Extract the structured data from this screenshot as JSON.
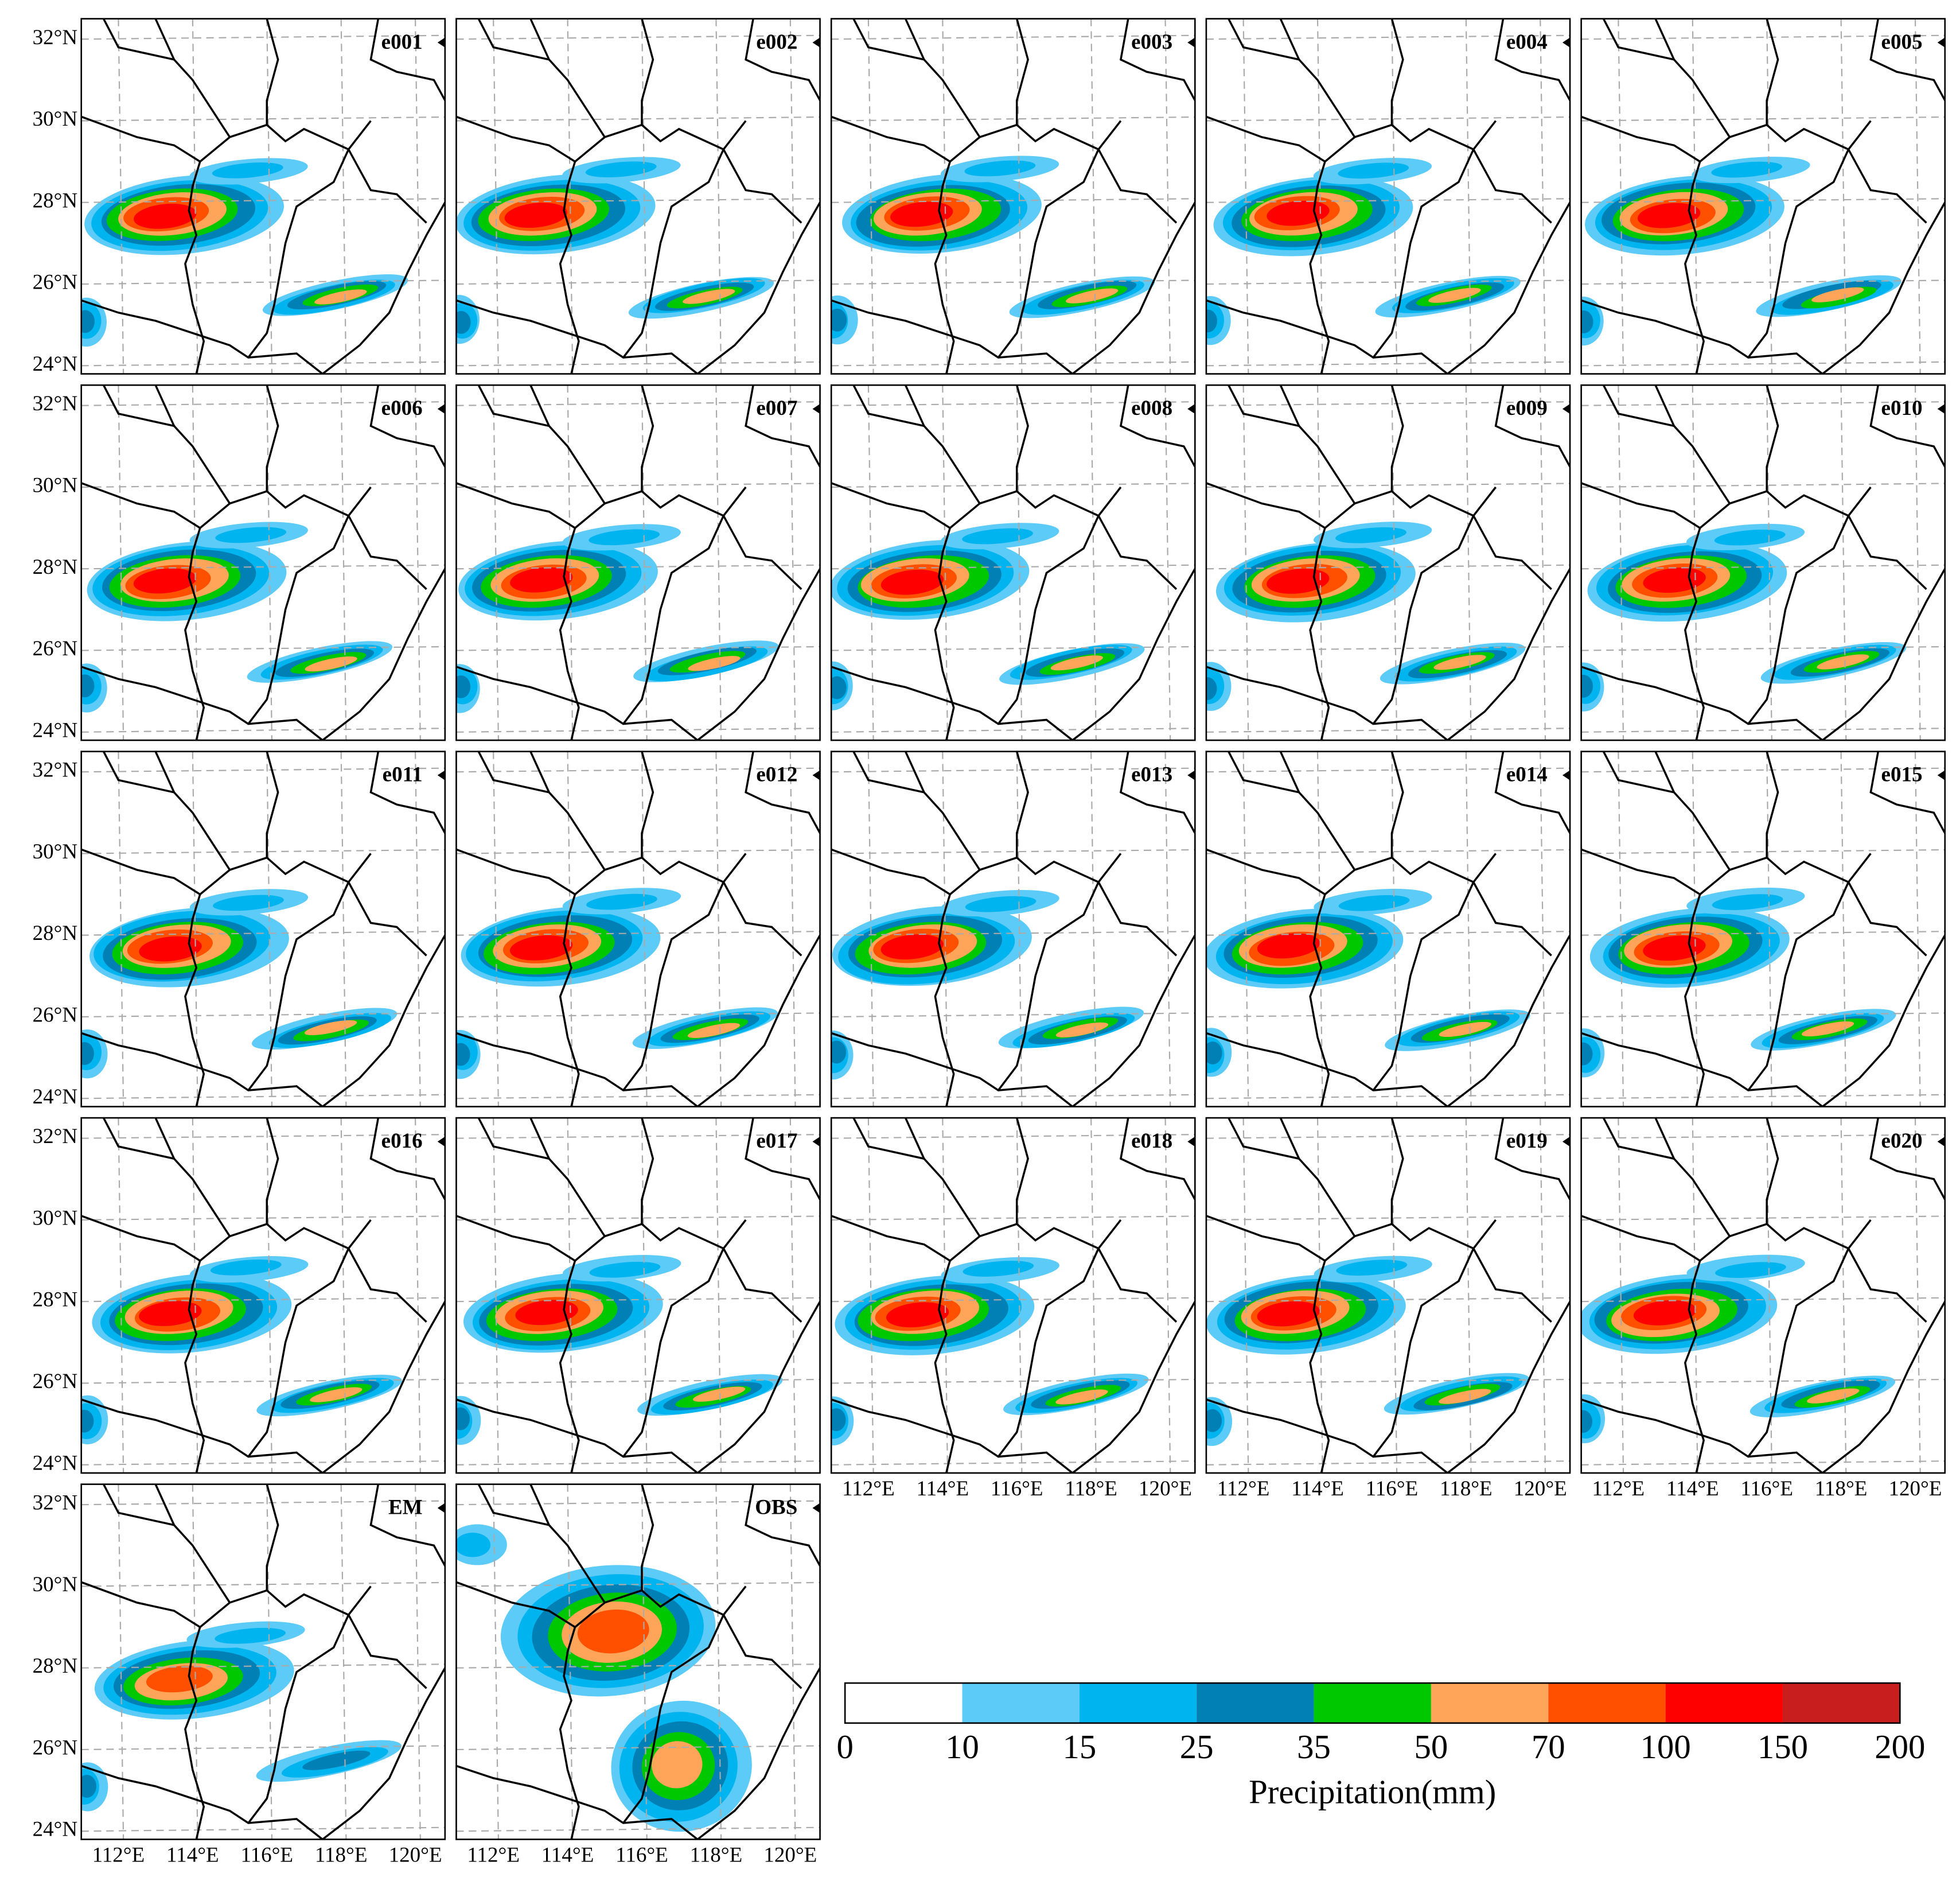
{
  "panels": [
    {
      "label": "e001"
    },
    {
      "label": "e002"
    },
    {
      "label": "e003"
    },
    {
      "label": "e004"
    },
    {
      "label": "e005"
    },
    {
      "label": "e006"
    },
    {
      "label": "e007"
    },
    {
      "label": "e008"
    },
    {
      "label": "e009"
    },
    {
      "label": "e010"
    },
    {
      "label": "e011"
    },
    {
      "label": "e012"
    },
    {
      "label": "e013"
    },
    {
      "label": "e014"
    },
    {
      "label": "e015"
    },
    {
      "label": "e016"
    },
    {
      "label": "e017"
    },
    {
      "label": "e018"
    },
    {
      "label": "e019"
    },
    {
      "label": "e020"
    },
    {
      "label": "EM"
    },
    {
      "label": "OBS"
    }
  ],
  "map": {
    "xlim": [
      111,
      120.8
    ],
    "ylim": [
      23.8,
      32.5
    ],
    "xticks": [
      {
        "value": 112,
        "label": "112°E"
      },
      {
        "value": 114,
        "label": "114°E"
      },
      {
        "value": 116,
        "label": "116°E"
      },
      {
        "value": 118,
        "label": "118°E"
      },
      {
        "value": 120,
        "label": "120°E"
      }
    ],
    "yticks": [
      {
        "value": 24,
        "label": "24°N"
      },
      {
        "value": 26,
        "label": "26°N"
      },
      {
        "value": 28,
        "label": "28°N"
      },
      {
        "value": 30,
        "label": "30°N"
      },
      {
        "value": 32,
        "label": "32°N"
      }
    ],
    "grid": true
  },
  "colorbar": {
    "label": "Precipitation(mm)",
    "levels": [
      0,
      10,
      15,
      25,
      35,
      50,
      70,
      100,
      150,
      200
    ],
    "colors": [
      "#ffffff",
      "#5ccbf7",
      "#00b4f0",
      "#0080b4",
      "#00c800",
      "#ffa55a",
      "#ff5000",
      "#ff0000",
      "#c81e1e"
    ]
  }
}
